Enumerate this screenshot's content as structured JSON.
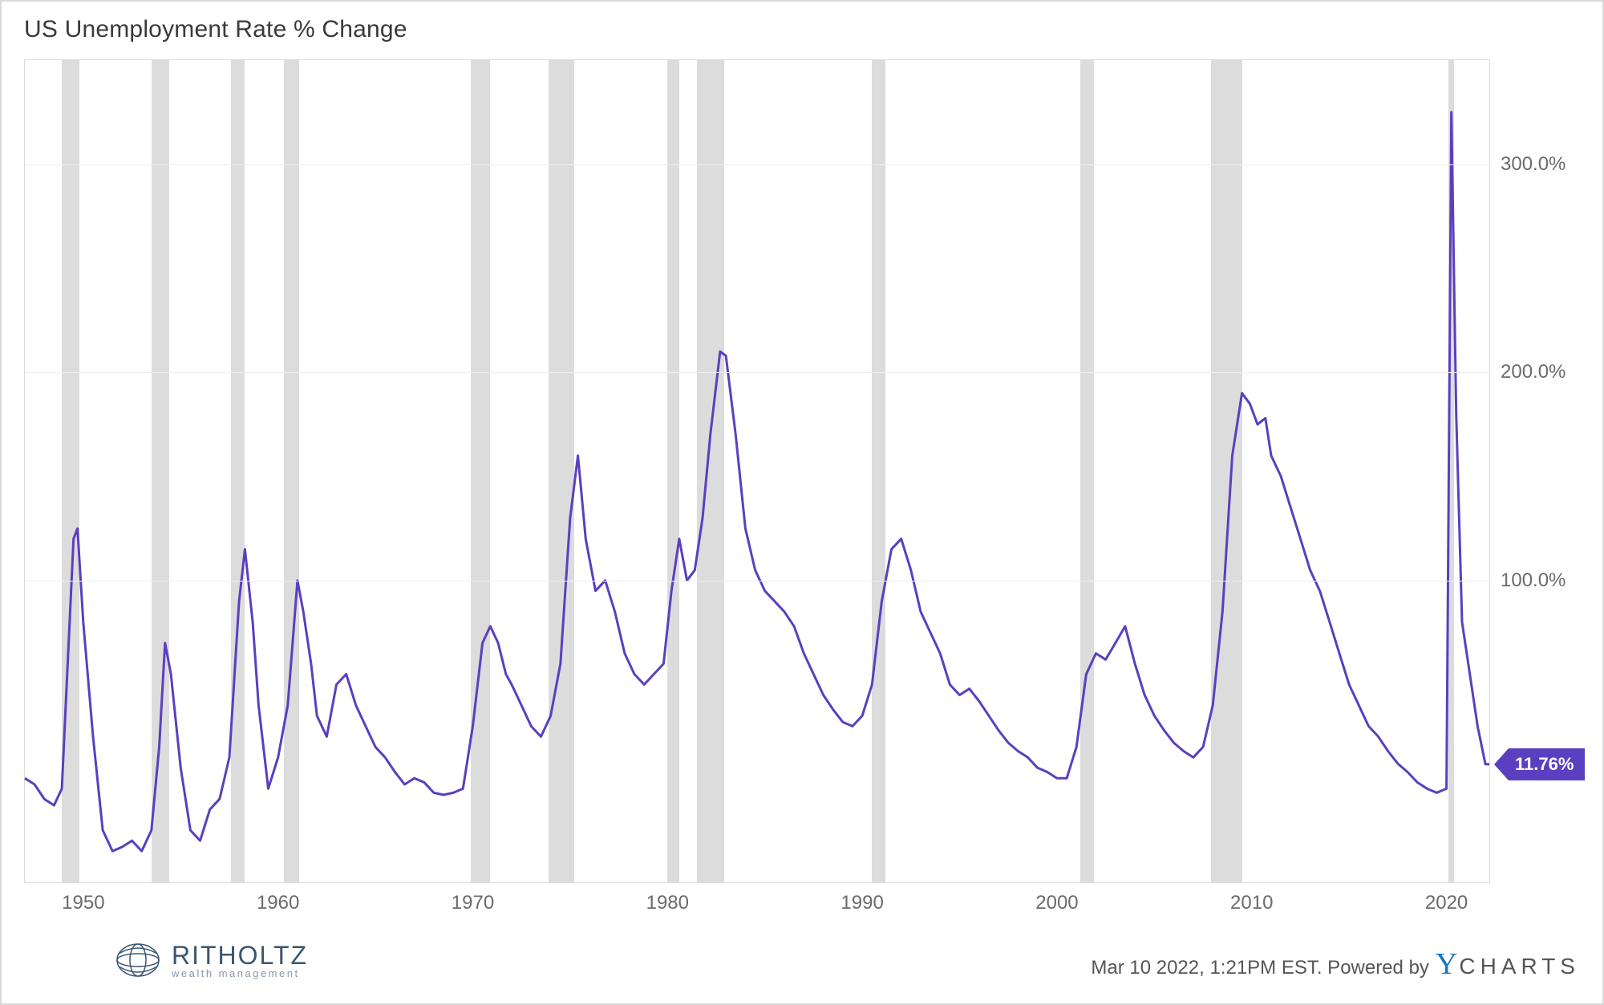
{
  "chart": {
    "type": "line",
    "title": "US Unemployment Rate % Change",
    "title_fontsize": 30,
    "title_color": "#3a3a3a",
    "background_color": "#ffffff",
    "border_color": "#dcdcdc",
    "grid_color": "#eeeeee",
    "line_color": "#5a3fc0",
    "line_width": 3,
    "x_domain": [
      1947,
      2022.2
    ],
    "y_domain": [
      -45,
      350
    ],
    "x_ticks": [
      1950,
      1960,
      1970,
      1980,
      1990,
      2000,
      2010,
      2020
    ],
    "y_ticks": [
      {
        "v": 100,
        "label": "100.0%"
      },
      {
        "v": 200,
        "label": "200.0%"
      },
      {
        "v": 300,
        "label": "300.0%"
      }
    ],
    "tick_fontsize": 24,
    "tick_color": "#6b6b6b",
    "recession_bands": [
      {
        "start": 1948.9,
        "end": 1949.8
      },
      {
        "start": 1953.5,
        "end": 1954.4
      },
      {
        "start": 1957.6,
        "end": 1958.3
      },
      {
        "start": 1960.3,
        "end": 1961.1
      },
      {
        "start": 1969.9,
        "end": 1970.9
      },
      {
        "start": 1973.9,
        "end": 1975.2
      },
      {
        "start": 1980.0,
        "end": 1980.6
      },
      {
        "start": 1981.5,
        "end": 1982.9
      },
      {
        "start": 1990.5,
        "end": 1991.2
      },
      {
        "start": 2001.2,
        "end": 2001.9
      },
      {
        "start": 2007.9,
        "end": 2009.5
      },
      {
        "start": 2020.1,
        "end": 2020.4
      }
    ],
    "recession_color": "#d8d8d8",
    "end_label": {
      "value": 11.76,
      "text": "11.76%",
      "bg": "#5a3fc0",
      "color": "#ffffff",
      "fontsize": 22
    },
    "series": [
      {
        "x": 1947.0,
        "y": 5
      },
      {
        "x": 1947.5,
        "y": 2
      },
      {
        "x": 1948.0,
        "y": -5
      },
      {
        "x": 1948.5,
        "y": -8
      },
      {
        "x": 1948.9,
        "y": 0
      },
      {
        "x": 1949.2,
        "y": 60
      },
      {
        "x": 1949.5,
        "y": 120
      },
      {
        "x": 1949.7,
        "y": 125
      },
      {
        "x": 1950.0,
        "y": 80
      },
      {
        "x": 1950.5,
        "y": 25
      },
      {
        "x": 1951.0,
        "y": -20
      },
      {
        "x": 1951.5,
        "y": -30
      },
      {
        "x": 1952.0,
        "y": -28
      },
      {
        "x": 1952.5,
        "y": -25
      },
      {
        "x": 1953.0,
        "y": -30
      },
      {
        "x": 1953.5,
        "y": -20
      },
      {
        "x": 1953.9,
        "y": 20
      },
      {
        "x": 1954.2,
        "y": 70
      },
      {
        "x": 1954.5,
        "y": 55
      },
      {
        "x": 1955.0,
        "y": 10
      },
      {
        "x": 1955.5,
        "y": -20
      },
      {
        "x": 1956.0,
        "y": -25
      },
      {
        "x": 1956.5,
        "y": -10
      },
      {
        "x": 1957.0,
        "y": -5
      },
      {
        "x": 1957.5,
        "y": 15
      },
      {
        "x": 1958.0,
        "y": 90
      },
      {
        "x": 1958.3,
        "y": 115
      },
      {
        "x": 1958.7,
        "y": 80
      },
      {
        "x": 1959.0,
        "y": 40
      },
      {
        "x": 1959.5,
        "y": 0
      },
      {
        "x": 1960.0,
        "y": 15
      },
      {
        "x": 1960.5,
        "y": 40
      },
      {
        "x": 1961.0,
        "y": 100
      },
      {
        "x": 1961.3,
        "y": 85
      },
      {
        "x": 1961.7,
        "y": 60
      },
      {
        "x": 1962.0,
        "y": 35
      },
      {
        "x": 1962.5,
        "y": 25
      },
      {
        "x": 1963.0,
        "y": 50
      },
      {
        "x": 1963.5,
        "y": 55
      },
      {
        "x": 1964.0,
        "y": 40
      },
      {
        "x": 1964.5,
        "y": 30
      },
      {
        "x": 1965.0,
        "y": 20
      },
      {
        "x": 1965.5,
        "y": 15
      },
      {
        "x": 1966.0,
        "y": 8
      },
      {
        "x": 1966.5,
        "y": 2
      },
      {
        "x": 1967.0,
        "y": 5
      },
      {
        "x": 1967.5,
        "y": 3
      },
      {
        "x": 1968.0,
        "y": -2
      },
      {
        "x": 1968.5,
        "y": -3
      },
      {
        "x": 1969.0,
        "y": -2
      },
      {
        "x": 1969.5,
        "y": 0
      },
      {
        "x": 1970.0,
        "y": 30
      },
      {
        "x": 1970.5,
        "y": 70
      },
      {
        "x": 1970.9,
        "y": 78
      },
      {
        "x": 1971.3,
        "y": 70
      },
      {
        "x": 1971.7,
        "y": 55
      },
      {
        "x": 1972.0,
        "y": 50
      },
      {
        "x": 1972.5,
        "y": 40
      },
      {
        "x": 1973.0,
        "y": 30
      },
      {
        "x": 1973.5,
        "y": 25
      },
      {
        "x": 1974.0,
        "y": 35
      },
      {
        "x": 1974.5,
        "y": 60
      },
      {
        "x": 1975.0,
        "y": 130
      },
      {
        "x": 1975.4,
        "y": 160
      },
      {
        "x": 1975.8,
        "y": 120
      },
      {
        "x": 1976.3,
        "y": 95
      },
      {
        "x": 1976.8,
        "y": 100
      },
      {
        "x": 1977.3,
        "y": 85
      },
      {
        "x": 1977.8,
        "y": 65
      },
      {
        "x": 1978.3,
        "y": 55
      },
      {
        "x": 1978.8,
        "y": 50
      },
      {
        "x": 1979.3,
        "y": 55
      },
      {
        "x": 1979.8,
        "y": 60
      },
      {
        "x": 1980.2,
        "y": 95
      },
      {
        "x": 1980.6,
        "y": 120
      },
      {
        "x": 1981.0,
        "y": 100
      },
      {
        "x": 1981.4,
        "y": 105
      },
      {
        "x": 1981.8,
        "y": 130
      },
      {
        "x": 1982.2,
        "y": 170
      },
      {
        "x": 1982.7,
        "y": 210
      },
      {
        "x": 1983.0,
        "y": 208
      },
      {
        "x": 1983.5,
        "y": 170
      },
      {
        "x": 1984.0,
        "y": 125
      },
      {
        "x": 1984.5,
        "y": 105
      },
      {
        "x": 1985.0,
        "y": 95
      },
      {
        "x": 1985.5,
        "y": 90
      },
      {
        "x": 1986.0,
        "y": 85
      },
      {
        "x": 1986.5,
        "y": 78
      },
      {
        "x": 1987.0,
        "y": 65
      },
      {
        "x": 1987.5,
        "y": 55
      },
      {
        "x": 1988.0,
        "y": 45
      },
      {
        "x": 1988.5,
        "y": 38
      },
      {
        "x": 1989.0,
        "y": 32
      },
      {
        "x": 1989.5,
        "y": 30
      },
      {
        "x": 1990.0,
        "y": 35
      },
      {
        "x": 1990.5,
        "y": 50
      },
      {
        "x": 1991.0,
        "y": 90
      },
      {
        "x": 1991.5,
        "y": 115
      },
      {
        "x": 1992.0,
        "y": 120
      },
      {
        "x": 1992.5,
        "y": 105
      },
      {
        "x": 1993.0,
        "y": 85
      },
      {
        "x": 1993.5,
        "y": 75
      },
      {
        "x": 1994.0,
        "y": 65
      },
      {
        "x": 1994.5,
        "y": 50
      },
      {
        "x": 1995.0,
        "y": 45
      },
      {
        "x": 1995.5,
        "y": 48
      },
      {
        "x": 1996.0,
        "y": 42
      },
      {
        "x": 1996.5,
        "y": 35
      },
      {
        "x": 1997.0,
        "y": 28
      },
      {
        "x": 1997.5,
        "y": 22
      },
      {
        "x": 1998.0,
        "y": 18
      },
      {
        "x": 1998.5,
        "y": 15
      },
      {
        "x": 1999.0,
        "y": 10
      },
      {
        "x": 1999.5,
        "y": 8
      },
      {
        "x": 2000.0,
        "y": 5
      },
      {
        "x": 2000.5,
        "y": 5
      },
      {
        "x": 2001.0,
        "y": 20
      },
      {
        "x": 2001.5,
        "y": 55
      },
      {
        "x": 2002.0,
        "y": 65
      },
      {
        "x": 2002.5,
        "y": 62
      },
      {
        "x": 2003.0,
        "y": 70
      },
      {
        "x": 2003.5,
        "y": 78
      },
      {
        "x": 2004.0,
        "y": 60
      },
      {
        "x": 2004.5,
        "y": 45
      },
      {
        "x": 2005.0,
        "y": 35
      },
      {
        "x": 2005.5,
        "y": 28
      },
      {
        "x": 2006.0,
        "y": 22
      },
      {
        "x": 2006.5,
        "y": 18
      },
      {
        "x": 2007.0,
        "y": 15
      },
      {
        "x": 2007.5,
        "y": 20
      },
      {
        "x": 2008.0,
        "y": 40
      },
      {
        "x": 2008.5,
        "y": 85
      },
      {
        "x": 2009.0,
        "y": 160
      },
      {
        "x": 2009.5,
        "y": 190
      },
      {
        "x": 2009.9,
        "y": 185
      },
      {
        "x": 2010.3,
        "y": 175
      },
      {
        "x": 2010.7,
        "y": 178
      },
      {
        "x": 2011.0,
        "y": 160
      },
      {
        "x": 2011.5,
        "y": 150
      },
      {
        "x": 2012.0,
        "y": 135
      },
      {
        "x": 2012.5,
        "y": 120
      },
      {
        "x": 2013.0,
        "y": 105
      },
      {
        "x": 2013.5,
        "y": 95
      },
      {
        "x": 2014.0,
        "y": 80
      },
      {
        "x": 2014.5,
        "y": 65
      },
      {
        "x": 2015.0,
        "y": 50
      },
      {
        "x": 2015.5,
        "y": 40
      },
      {
        "x": 2016.0,
        "y": 30
      },
      {
        "x": 2016.5,
        "y": 25
      },
      {
        "x": 2017.0,
        "y": 18
      },
      {
        "x": 2017.5,
        "y": 12
      },
      {
        "x": 2018.0,
        "y": 8
      },
      {
        "x": 2018.5,
        "y": 3
      },
      {
        "x": 2019.0,
        "y": 0
      },
      {
        "x": 2019.5,
        "y": -2
      },
      {
        "x": 2020.0,
        "y": 0
      },
      {
        "x": 2020.25,
        "y": 325
      },
      {
        "x": 2020.5,
        "y": 180
      },
      {
        "x": 2020.8,
        "y": 80
      },
      {
        "x": 2021.2,
        "y": 55
      },
      {
        "x": 2021.6,
        "y": 30
      },
      {
        "x": 2022.0,
        "y": 11.76
      },
      {
        "x": 2022.2,
        "y": 11.76
      }
    ]
  },
  "footer": {
    "left_logo": {
      "brand": "RITHOLTZ",
      "sub": "wealth management"
    },
    "right_text": "Mar 10 2022, 1:21PM EST. Powered by",
    "powered_brand": "CHARTS",
    "timestamp_fontsize": 24
  }
}
